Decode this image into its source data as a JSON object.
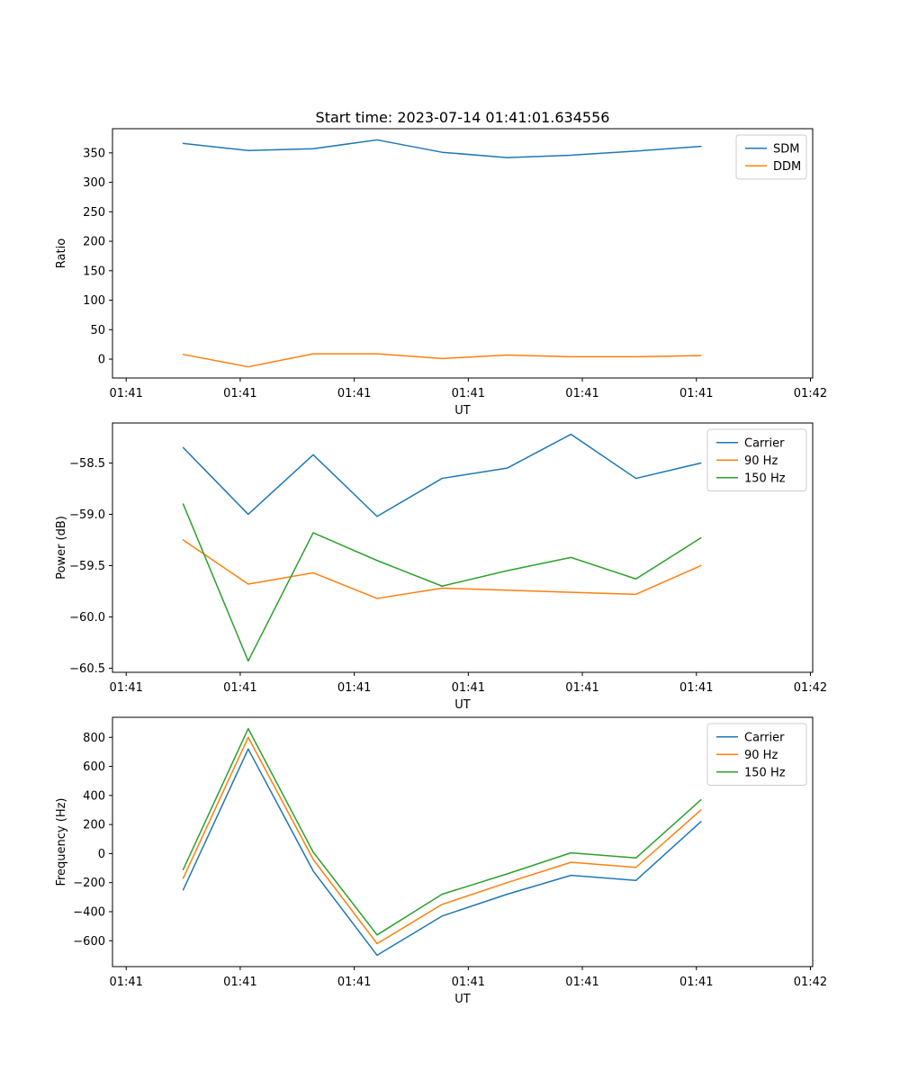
{
  "title": "Start time: 2023-07-14 01:41:01.634556",
  "background": "#ffffff",
  "axis_color": "#000000",
  "legend_border_color": "#cccccc",
  "series_colors": {
    "blue": "#1f77b4",
    "orange": "#ff7f0e",
    "green": "#2ca02c"
  },
  "chart_data": [
    {
      "type": "line",
      "title": "",
      "xlabel": "UT",
      "ylabel": "Ratio",
      "x": [
        5.0,
        10.7,
        16.4,
        22.0,
        27.7,
        33.4,
        39.0,
        44.7,
        50.4
      ],
      "xlim": [
        -1.2,
        60.2
      ],
      "xticks": [
        0,
        10,
        20,
        30,
        40,
        50,
        60
      ],
      "xticklabels": [
        "01:41",
        "01:41",
        "01:41",
        "01:41",
        "01:41",
        "01:41",
        "01:42"
      ],
      "ylim": [
        -32,
        391
      ],
      "yticks": [
        0,
        50,
        100,
        150,
        200,
        250,
        300,
        350
      ],
      "yticklabels": [
        "0",
        "50",
        "100",
        "150",
        "200",
        "250",
        "300",
        "350"
      ],
      "grid": false,
      "legend_position": "upper right",
      "series": [
        {
          "name": "SDM",
          "color": "#1f77b4",
          "values": [
            366,
            354,
            357,
            372,
            351,
            342,
            346,
            353,
            361
          ]
        },
        {
          "name": "DDM",
          "color": "#ff7f0e",
          "values": [
            8,
            -13,
            9,
            9,
            1,
            7,
            4,
            4,
            6
          ]
        }
      ]
    },
    {
      "type": "line",
      "title": "",
      "xlabel": "UT",
      "ylabel": "Power (dB)",
      "x": [
        5.0,
        10.7,
        16.4,
        22.0,
        27.7,
        33.4,
        39.0,
        44.7,
        50.4
      ],
      "xlim": [
        -1.2,
        60.2
      ],
      "xticks": [
        0,
        10,
        20,
        30,
        40,
        50,
        60
      ],
      "xticklabels": [
        "01:41",
        "01:41",
        "01:41",
        "01:41",
        "01:41",
        "01:41",
        "01:42"
      ],
      "ylim": [
        -60.54,
        -58.11
      ],
      "yticks": [
        -60.5,
        -60.0,
        -59.5,
        -59.0,
        -58.5
      ],
      "yticklabels": [
        "−60.5",
        "−60.0",
        "−59.5",
        "−59.0",
        "−58.5"
      ],
      "grid": false,
      "legend_position": "upper right",
      "series": [
        {
          "name": "Carrier",
          "color": "#1f77b4",
          "values": [
            -58.35,
            -59.0,
            -58.42,
            -59.02,
            -58.65,
            -58.55,
            -58.22,
            -58.65,
            -58.5
          ]
        },
        {
          "name": "90 Hz",
          "color": "#ff7f0e",
          "values": [
            -59.25,
            -59.68,
            -59.57,
            -59.82,
            -59.72,
            -59.74,
            -59.76,
            -59.78,
            -59.5
          ]
        },
        {
          "name": "150 Hz",
          "color": "#2ca02c",
          "values": [
            -58.9,
            -60.43,
            -59.18,
            -59.45,
            -59.7,
            -59.55,
            -59.42,
            -59.63,
            -59.23
          ]
        }
      ]
    },
    {
      "type": "line",
      "title": "",
      "xlabel": "UT",
      "ylabel": "Frequency (Hz)",
      "x": [
        5.0,
        10.7,
        16.4,
        22.0,
        27.7,
        33.4,
        39.0,
        44.7,
        50.4
      ],
      "xlim": [
        -1.2,
        60.2
      ],
      "xticks": [
        0,
        10,
        20,
        30,
        40,
        50,
        60
      ],
      "xticklabels": [
        "01:41",
        "01:41",
        "01:41",
        "01:41",
        "01:41",
        "01:41",
        "01:42"
      ],
      "ylim": [
        -778,
        938
      ],
      "yticks": [
        -600,
        -400,
        -200,
        0,
        200,
        400,
        600,
        800
      ],
      "yticklabels": [
        "−600",
        "−400",
        "−200",
        "0",
        "200",
        "400",
        "600",
        "800"
      ],
      "grid": false,
      "legend_position": "upper right",
      "series": [
        {
          "name": "Carrier",
          "color": "#1f77b4",
          "values": [
            -250,
            720,
            -120,
            -700,
            -430,
            -280,
            -150,
            -185,
            220
          ]
        },
        {
          "name": "90 Hz",
          "color": "#ff7f0e",
          "values": [
            -170,
            800,
            -40,
            -620,
            -350,
            -200,
            -60,
            -95,
            300
          ]
        },
        {
          "name": "150 Hz",
          "color": "#2ca02c",
          "values": [
            -110,
            860,
            10,
            -560,
            -280,
            -140,
            5,
            -30,
            370
          ]
        }
      ]
    }
  ]
}
